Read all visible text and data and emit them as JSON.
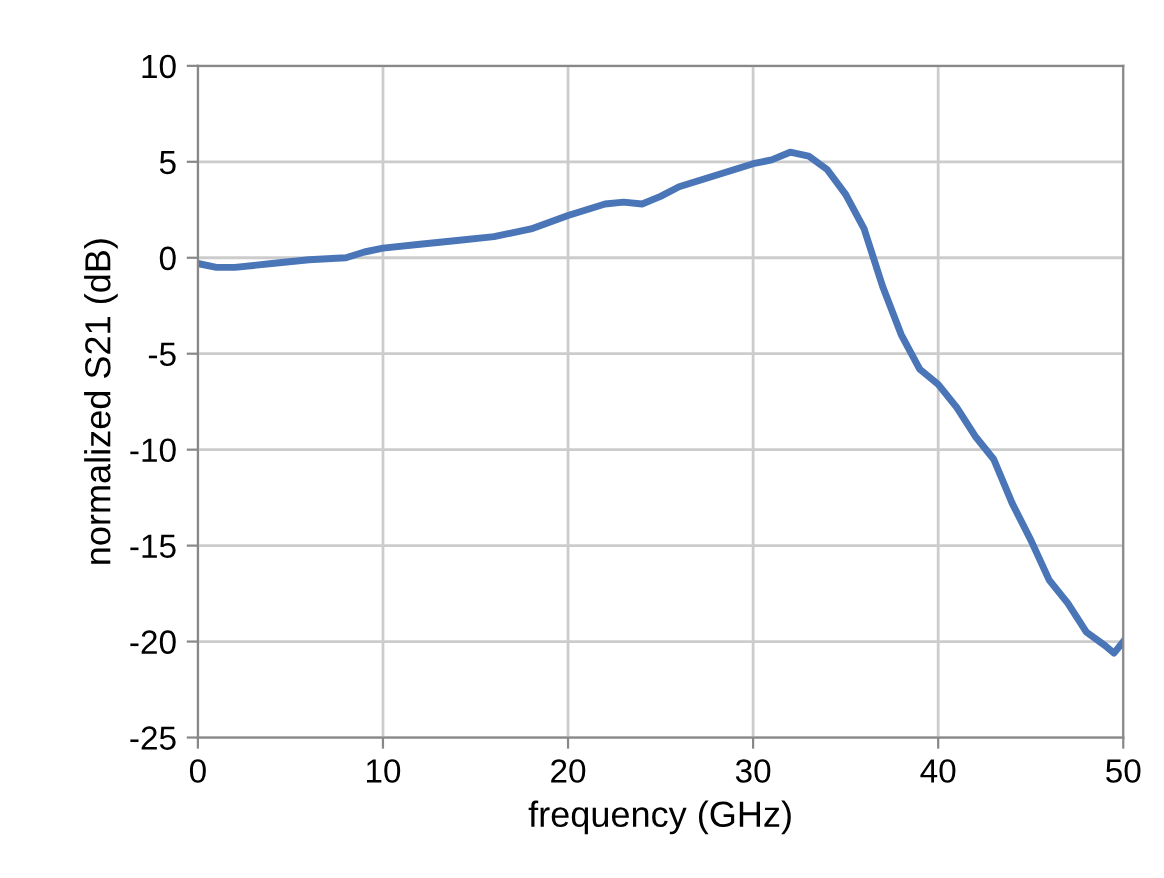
{
  "chart_data": {
    "type": "line",
    "xlabel": "frequency (GHz)",
    "ylabel": "normalized S21 (dB)",
    "x": [
      0,
      1,
      2,
      4,
      6,
      8,
      9,
      10,
      12,
      14,
      16,
      18,
      20,
      22,
      23,
      24,
      25,
      26,
      28,
      30,
      31,
      32,
      33,
      34,
      35,
      36,
      37,
      38,
      39,
      40,
      41,
      42,
      43,
      44,
      45,
      46,
      47,
      48,
      49,
      49.5,
      50
    ],
    "series": [
      {
        "color": "#4a76b8",
        "values": [
          -0.3,
          -0.5,
          -0.5,
          -0.3,
          -0.1,
          0.0,
          0.3,
          0.5,
          0.7,
          0.9,
          1.1,
          1.5,
          2.2,
          2.8,
          2.9,
          2.8,
          3.2,
          3.7,
          4.3,
          4.9,
          5.1,
          5.5,
          5.3,
          4.6,
          3.3,
          1.5,
          -1.5,
          -4.0,
          -5.8,
          -6.6,
          -7.8,
          -9.3,
          -10.5,
          -12.8,
          -14.7,
          -16.8,
          -18.0,
          -19.5,
          -20.2,
          -20.6,
          -20.0
        ]
      }
    ],
    "xlim": [
      0,
      50
    ],
    "xticks": [
      0,
      10,
      20,
      30,
      40,
      50
    ],
    "ylim": [
      -25,
      10
    ],
    "yticks": [
      -25,
      -20,
      -15,
      -10,
      -5,
      0,
      5,
      10
    ],
    "grid": true,
    "marker": "none",
    "line_style": "solid"
  }
}
